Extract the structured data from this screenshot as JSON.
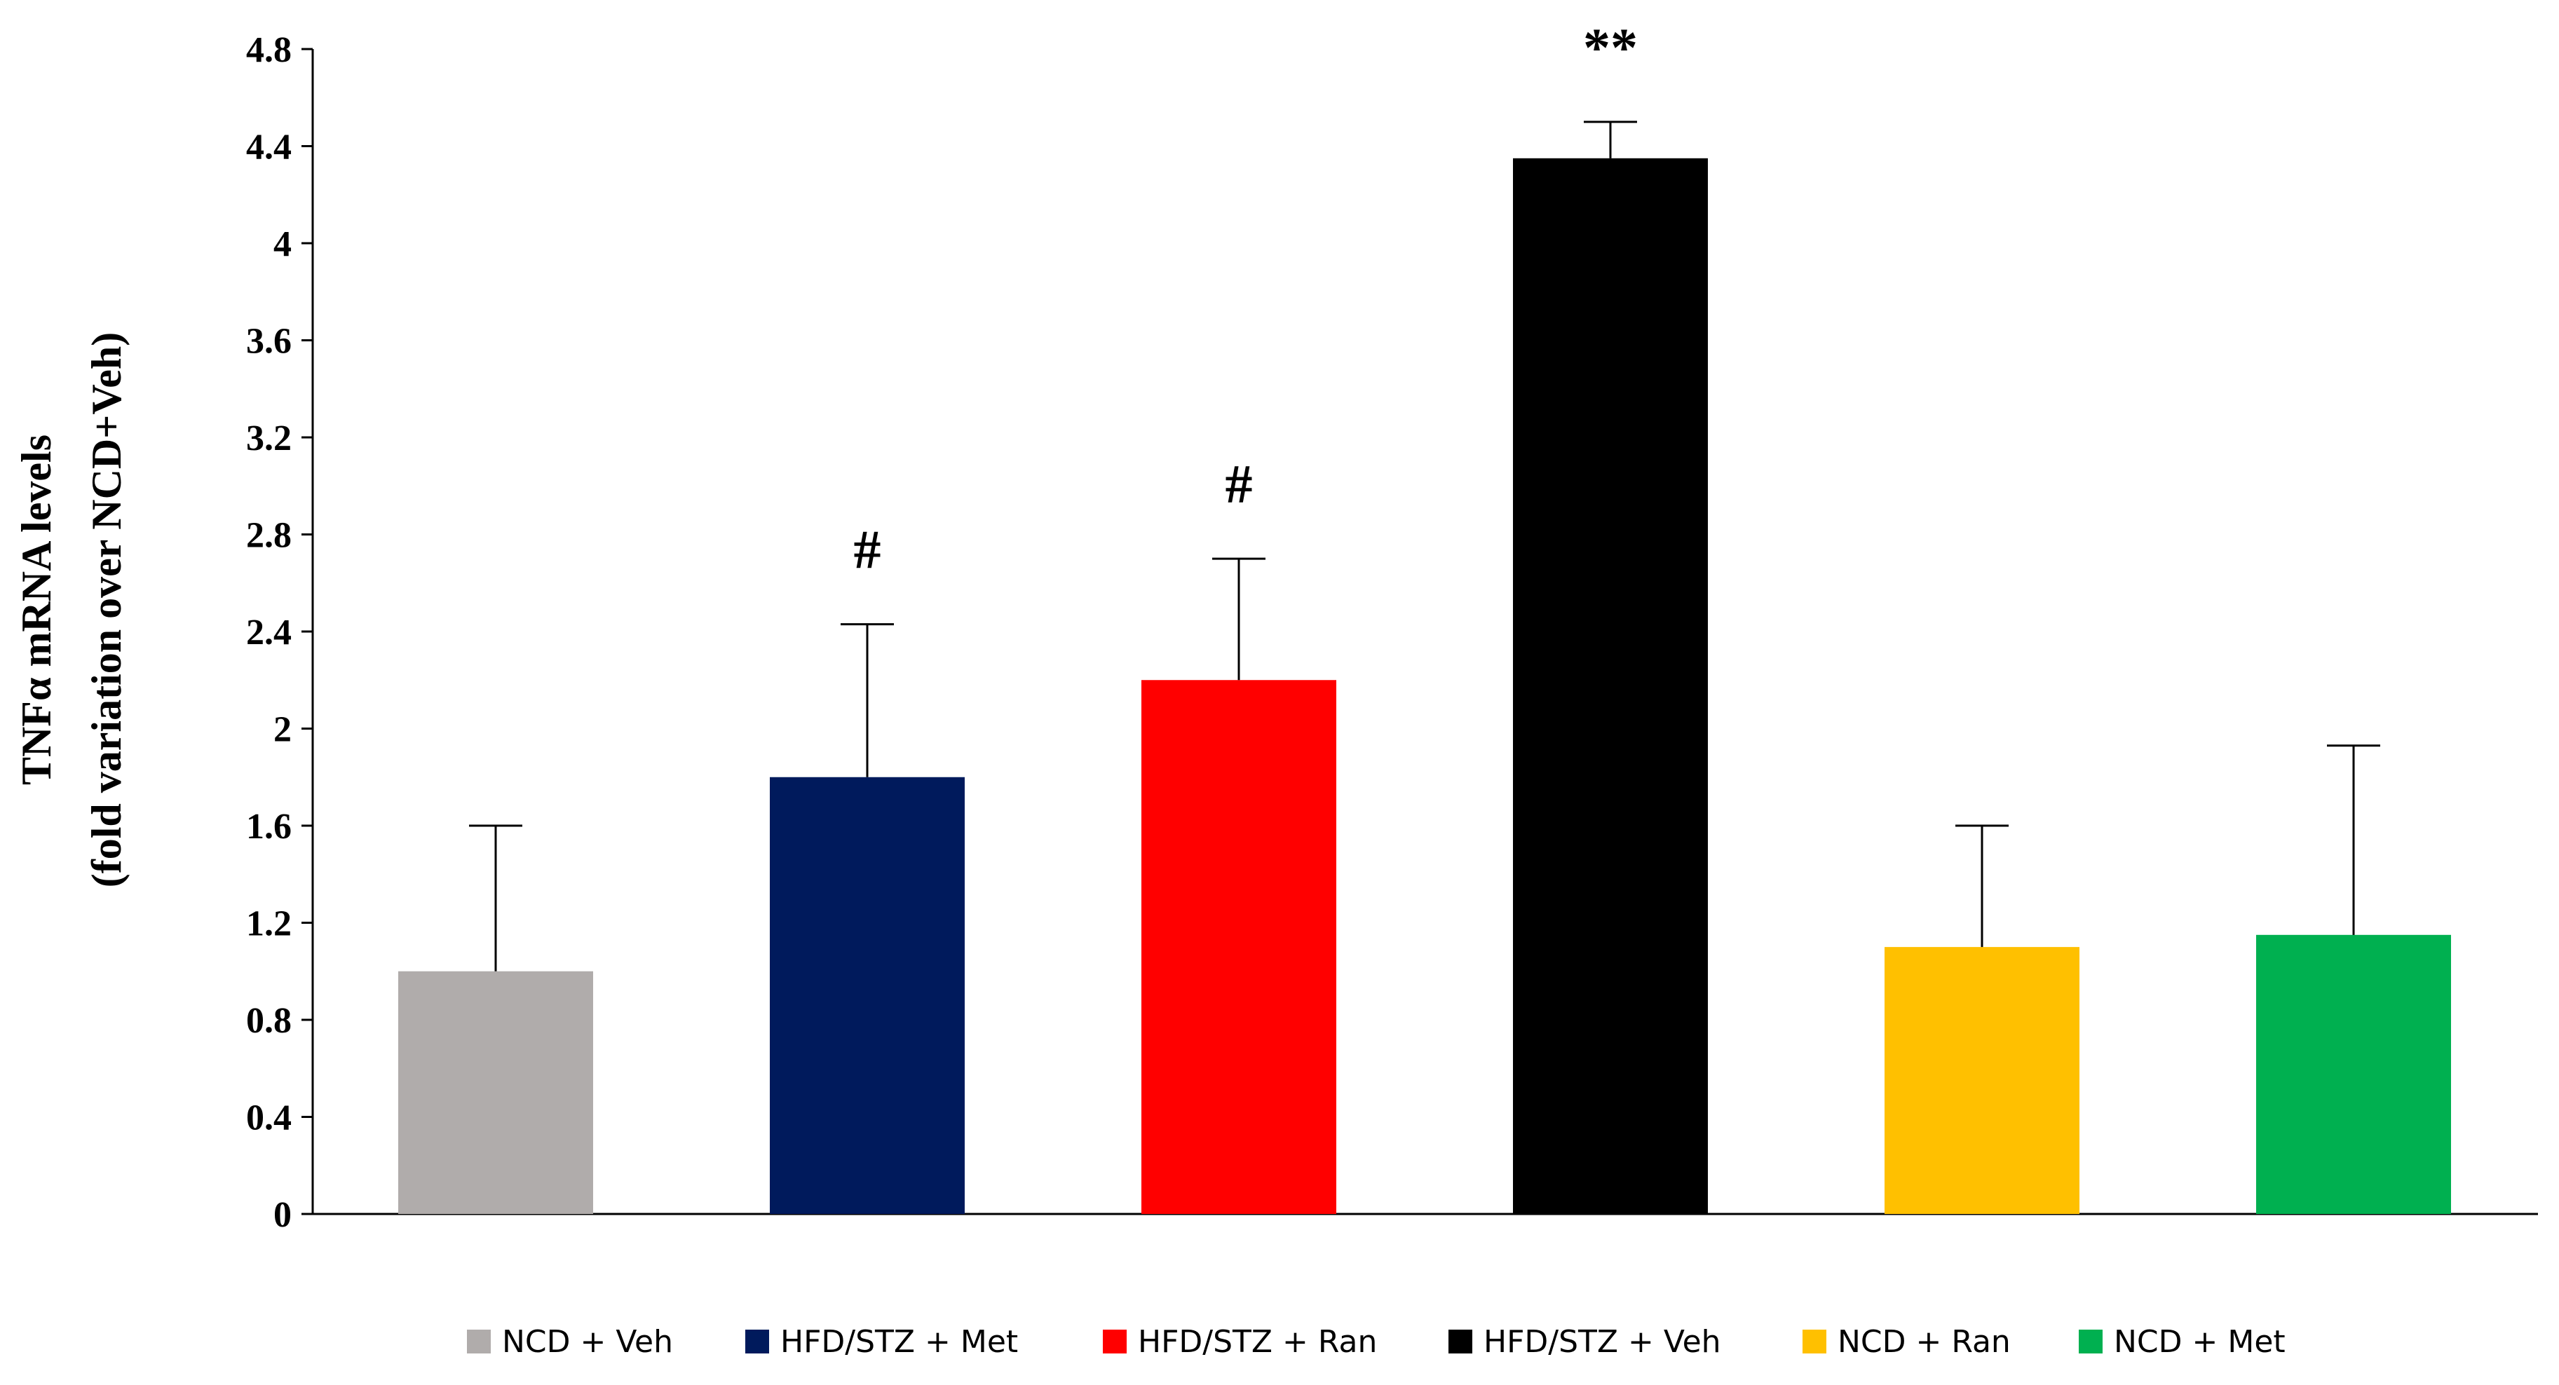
{
  "chart_data": {
    "type": "bar",
    "title": "",
    "xlabel": "",
    "ylabel_line1": "TNFα mRNA levels",
    "ylabel_line2": "(fold variation over NCD+Veh)",
    "ylim": [
      0,
      4.8
    ],
    "yticks": [
      "0",
      "0.4",
      "0.8",
      "1.2",
      "1.6",
      "2",
      "2.4",
      "2.8",
      "3.2",
      "3.6",
      "4",
      "4.4",
      "4.8"
    ],
    "categories": [
      "NCD + Veh",
      "HFD/STZ + Met",
      "HFD/STZ + Ran",
      "HFD/STZ + Veh",
      "NCD + Ran",
      "NCD + Met"
    ],
    "values": [
      1.0,
      1.8,
      2.2,
      4.35,
      1.1,
      1.15
    ],
    "errors": [
      0.6,
      0.63,
      0.5,
      0.15,
      0.5,
      0.78
    ],
    "annotations": [
      "",
      "#",
      "#",
      "**",
      "",
      ""
    ],
    "colors": [
      "#b0acab",
      "#001a5c",
      "#ff0000",
      "#000000",
      "#ffc000",
      "#00b050"
    ],
    "legend_position": "bottom",
    "grid": false
  }
}
